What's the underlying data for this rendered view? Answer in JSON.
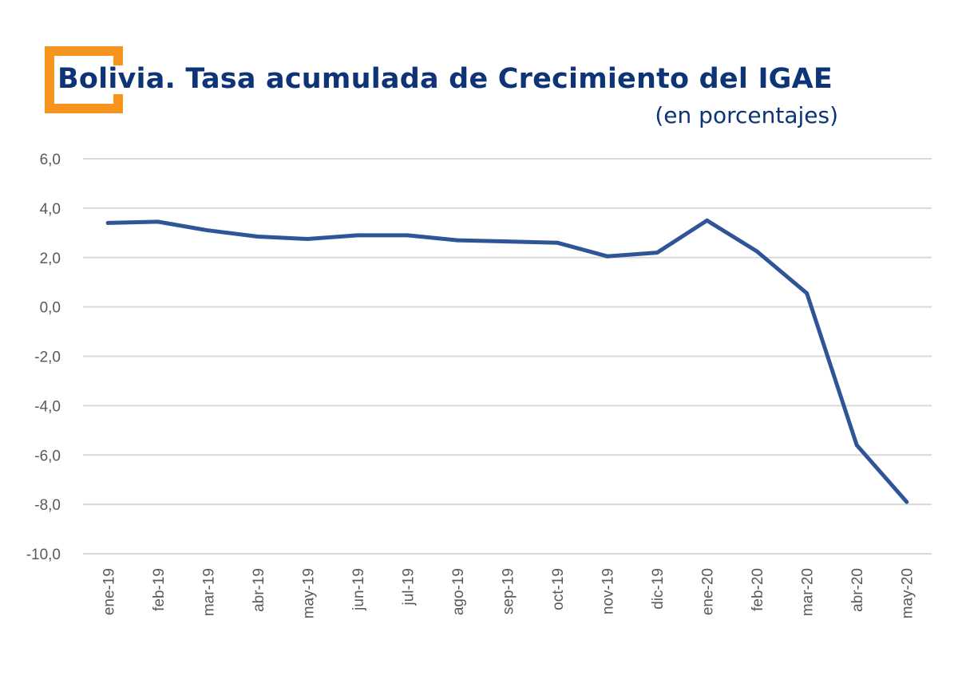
{
  "header": {
    "title": "Bolivia. Tasa acumulada de Crecimiento del IGAE",
    "subtitle": "(en porcentajes)",
    "logo_icon": "orange-bracket-logo"
  },
  "colors": {
    "title": "#0d3476",
    "logo": "#f7941d",
    "line": "#2f5597",
    "grid": "#d9d9d9",
    "tick": "#595959"
  },
  "chart_data": {
    "type": "line",
    "title": "Bolivia. Tasa acumulada de Crecimiento del IGAE",
    "subtitle": "(en porcentajes)",
    "xlabel": "",
    "ylabel": "",
    "ylim": [
      -10,
      6
    ],
    "yticks": [
      6,
      4,
      2,
      0,
      -2,
      -4,
      -6,
      -8,
      -10
    ],
    "ytick_labels": [
      "6,0",
      "4,0",
      "2,0",
      "0,0",
      "-2,0",
      "-4,0",
      "-6,0",
      "-8,0",
      "-10,0"
    ],
    "grid": true,
    "legend": "none",
    "categories": [
      "ene-19",
      "feb-19",
      "mar-19",
      "abr-19",
      "may-19",
      "jun-19",
      "jul-19",
      "ago-19",
      "sep-19",
      "oct-19",
      "nov-19",
      "dic-19",
      "ene-20",
      "feb-20",
      "mar-20",
      "abr-20",
      "may-20"
    ],
    "series": [
      {
        "name": "IGAE",
        "values": [
          3.4,
          3.45,
          3.1,
          2.85,
          2.75,
          2.9,
          2.9,
          2.7,
          2.65,
          2.6,
          2.05,
          2.2,
          3.5,
          2.25,
          0.55,
          -5.6,
          -7.9
        ]
      }
    ]
  }
}
